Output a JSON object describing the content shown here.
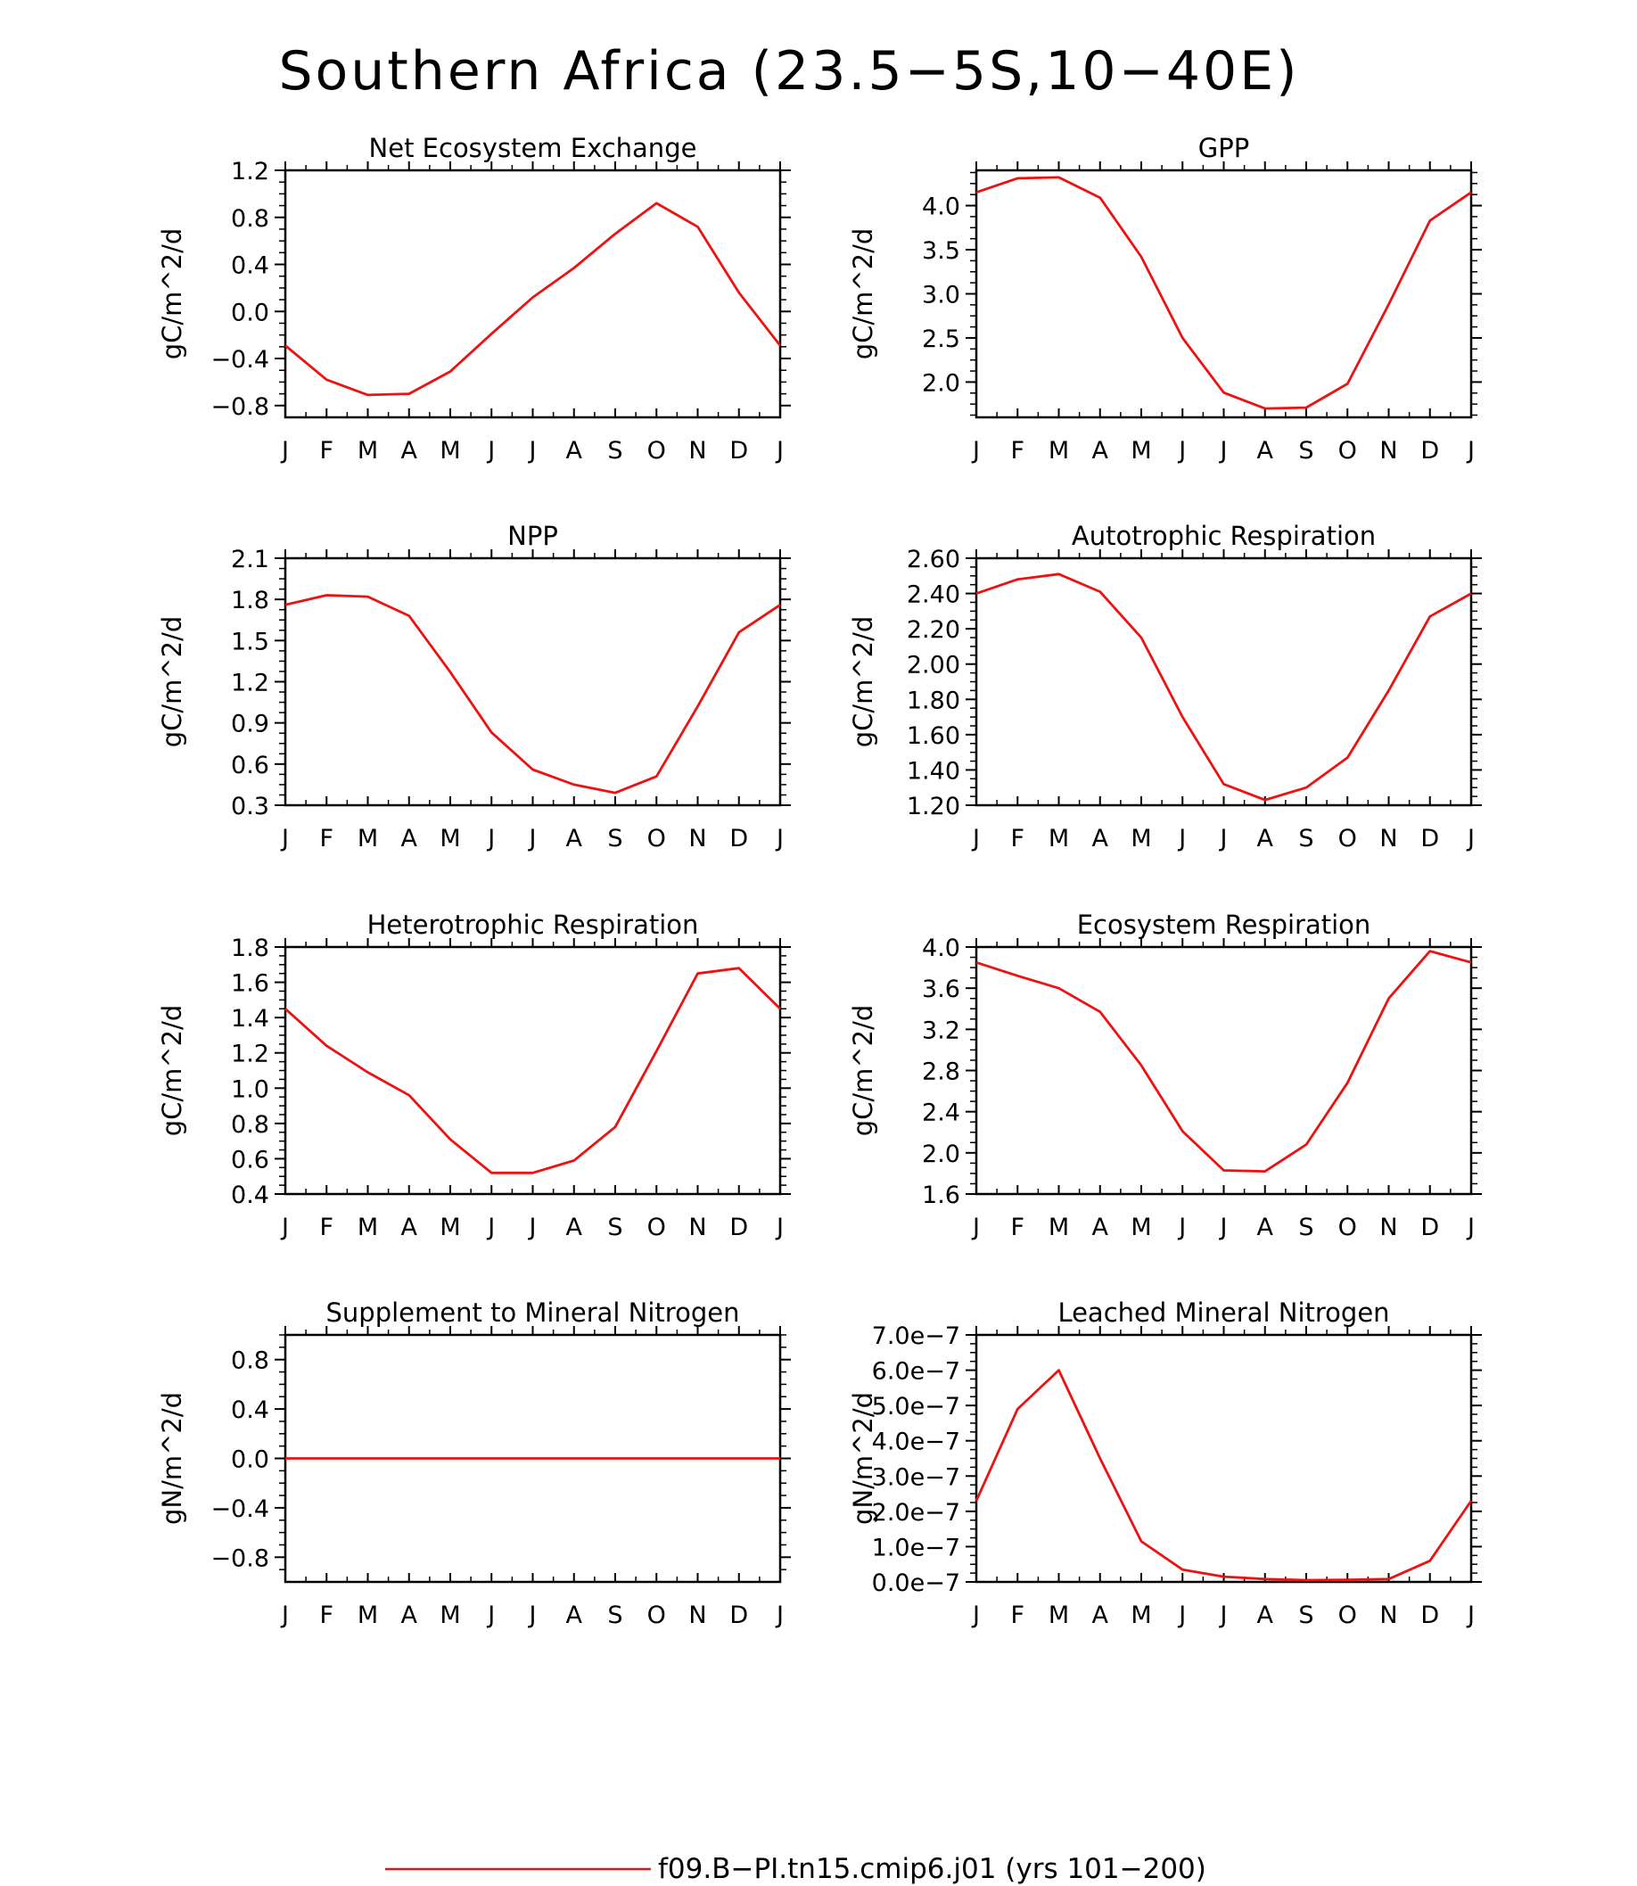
{
  "figure": {
    "title": "Southern Africa (23.5−5S,10−40E)",
    "line_color": "#ee1111",
    "legend": {
      "label": "f09.B−PI.tn15.cmip6.j01  (yrs 101−200)"
    }
  },
  "chart_data": [
    {
      "type": "line",
      "title": "Net Ecosystem Exchange",
      "ylabel": "gC/m^2/d",
      "x": [
        "J",
        "F",
        "M",
        "A",
        "M",
        "J",
        "J",
        "A",
        "S",
        "O",
        "N",
        "D",
        "J"
      ],
      "ylim": [
        -0.9,
        1.2
      ],
      "yticks": [
        "-0.8",
        "-0.4",
        "0.0",
        "0.4",
        "0.8",
        "1.2"
      ],
      "series": [
        {
          "values": [
            -0.29,
            -0.58,
            -0.71,
            -0.7,
            -0.51,
            -0.19,
            0.12,
            0.37,
            0.66,
            0.92,
            0.72,
            0.16,
            -0.29
          ]
        }
      ]
    },
    {
      "type": "line",
      "title": "GPP",
      "ylabel": "gC/m^2/d",
      "x": [
        "J",
        "F",
        "M",
        "A",
        "M",
        "J",
        "J",
        "A",
        "S",
        "O",
        "N",
        "D",
        "J"
      ],
      "ylim": [
        1.6,
        4.4
      ],
      "yticks": [
        "2.0",
        "2.5",
        "3.0",
        "3.5",
        "4.0"
      ],
      "series": [
        {
          "values": [
            4.15,
            4.31,
            4.32,
            4.09,
            3.42,
            2.5,
            1.88,
            1.7,
            1.71,
            1.98,
            2.88,
            3.83,
            4.15
          ]
        }
      ]
    },
    {
      "type": "line",
      "title": "NPP",
      "ylabel": "gC/m^2/d",
      "x": [
        "J",
        "F",
        "M",
        "A",
        "M",
        "J",
        "J",
        "A",
        "S",
        "O",
        "N",
        "D",
        "J"
      ],
      "ylim": [
        0.3,
        2.1
      ],
      "yticks": [
        "0.3",
        "0.6",
        "0.9",
        "1.2",
        "1.5",
        "1.8",
        "2.1"
      ],
      "series": [
        {
          "values": [
            1.76,
            1.83,
            1.82,
            1.68,
            1.27,
            0.83,
            0.56,
            0.45,
            0.39,
            0.51,
            1.02,
            1.56,
            1.76
          ]
        }
      ]
    },
    {
      "type": "line",
      "title": "Autotrophic Respiration",
      "ylabel": "gC/m^2/d",
      "x": [
        "J",
        "F",
        "M",
        "A",
        "M",
        "J",
        "J",
        "A",
        "S",
        "O",
        "N",
        "D",
        "J"
      ],
      "ylim": [
        1.2,
        2.6
      ],
      "yticks": [
        "1.20",
        "1.40",
        "1.60",
        "1.80",
        "2.00",
        "2.20",
        "2.40",
        "2.60"
      ],
      "series": [
        {
          "values": [
            2.4,
            2.48,
            2.51,
            2.41,
            2.15,
            1.7,
            1.32,
            1.23,
            1.3,
            1.47,
            1.85,
            2.27,
            2.4
          ]
        }
      ]
    },
    {
      "type": "line",
      "title": "Heterotrophic Respiration",
      "ylabel": "gC/m^2/d",
      "x": [
        "J",
        "F",
        "M",
        "A",
        "M",
        "J",
        "J",
        "A",
        "S",
        "O",
        "N",
        "D",
        "J"
      ],
      "ylim": [
        0.4,
        1.8
      ],
      "yticks": [
        "0.4",
        "0.6",
        "0.8",
        "1.0",
        "1.2",
        "1.4",
        "1.6",
        "1.8"
      ],
      "series": [
        {
          "values": [
            1.45,
            1.24,
            1.09,
            0.96,
            0.71,
            0.52,
            0.52,
            0.59,
            0.78,
            1.21,
            1.65,
            1.68,
            1.45
          ]
        }
      ]
    },
    {
      "type": "line",
      "title": "Ecosystem Respiration",
      "ylabel": "gC/m^2/d",
      "x": [
        "J",
        "F",
        "M",
        "A",
        "M",
        "J",
        "J",
        "A",
        "S",
        "O",
        "N",
        "D",
        "J"
      ],
      "ylim": [
        1.6,
        4.0
      ],
      "yticks": [
        "1.6",
        "2.0",
        "2.4",
        "2.8",
        "3.2",
        "3.6",
        "4.0"
      ],
      "series": [
        {
          "values": [
            3.85,
            3.72,
            3.6,
            3.37,
            2.85,
            2.21,
            1.83,
            1.82,
            2.08,
            2.68,
            3.5,
            3.96,
            3.85
          ]
        }
      ]
    },
    {
      "type": "line",
      "title": "Supplement to Mineral Nitrogen",
      "ylabel": "gN/m^2/d",
      "x": [
        "J",
        "F",
        "M",
        "A",
        "M",
        "J",
        "J",
        "A",
        "S",
        "O",
        "N",
        "D",
        "J"
      ],
      "ylim": [
        -1.0,
        1.0
      ],
      "yticks": [
        "-0.8",
        "-0.4",
        "0.0",
        "0.4",
        "0.8"
      ],
      "series": [
        {
          "values": [
            0,
            0,
            0,
            0,
            0,
            0,
            0,
            0,
            0,
            0,
            0,
            0,
            0
          ]
        }
      ]
    },
    {
      "type": "line",
      "title": "Leached Mineral Nitrogen",
      "ylabel": "gN/m^2/d",
      "x": [
        "J",
        "F",
        "M",
        "A",
        "M",
        "J",
        "J",
        "A",
        "S",
        "O",
        "N",
        "D",
        "J"
      ],
      "ylim": [
        0,
        7e-07
      ],
      "yticks": [
        "0.0e−7",
        "1.0e−7",
        "2.0e−7",
        "3.0e−7",
        "4.0e−7",
        "5.0e−7",
        "6.0e−7",
        "7.0e−7"
      ],
      "series": [
        {
          "values": [
            2.3e-07,
            4.9e-07,
            6e-07,
            3.5e-07,
            1.15e-07,
            3.5e-08,
            1.5e-08,
            8e-09,
            5e-09,
            6e-09,
            8e-09,
            6e-08,
            2.3e-07
          ]
        }
      ]
    }
  ]
}
